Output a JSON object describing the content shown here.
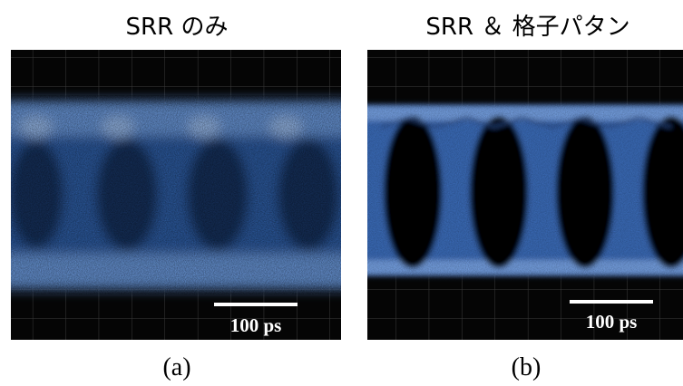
{
  "panels": [
    {
      "title": "SRR のみ",
      "scale_bar": "100 ps",
      "caption": "(a)"
    },
    {
      "title": "SRR ＆ 格子パタン",
      "scale_bar": "100 ps",
      "caption": "(b)"
    }
  ]
}
